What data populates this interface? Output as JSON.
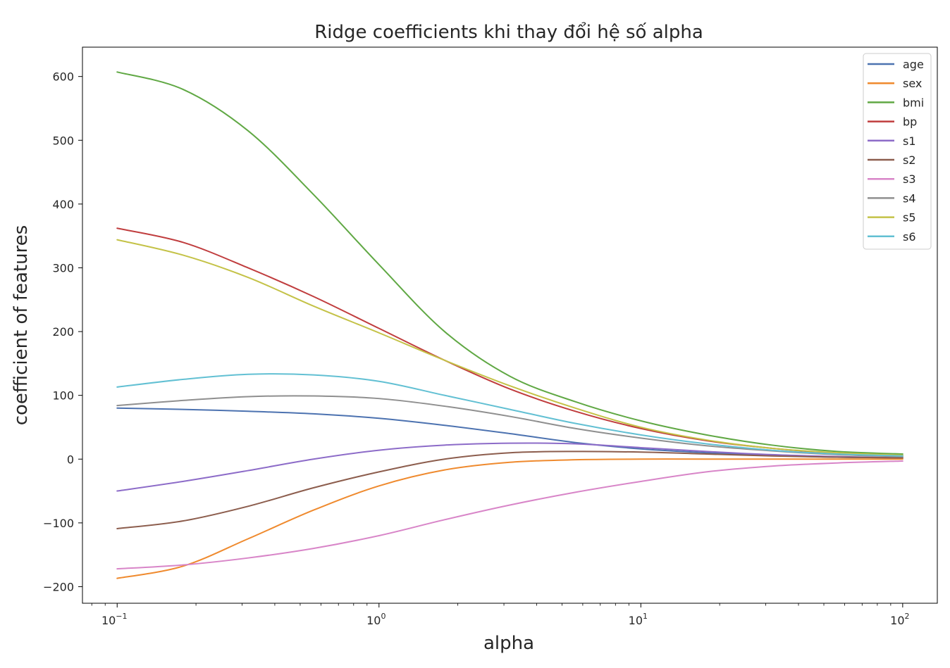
{
  "chart_data": {
    "type": "line",
    "title": "Ridge coefficients khi thay đổi hệ số alpha",
    "xlabel": "alpha",
    "ylabel": "coefficient of features",
    "xscale": "log",
    "xlim": [
      0.0737,
      135.6
    ],
    "ylim": [
      -226,
      646
    ],
    "xticks": [
      {
        "value": 0.1,
        "base": "10",
        "exp": "−1"
      },
      {
        "value": 1,
        "base": "10",
        "exp": "0"
      },
      {
        "value": 10,
        "base": "10",
        "exp": "1"
      },
      {
        "value": 100,
        "base": "10",
        "exp": "2"
      }
    ],
    "yticks": [
      {
        "value": -200,
        "label": "−200"
      },
      {
        "value": -100,
        "label": "−100"
      },
      {
        "value": 0,
        "label": "0"
      },
      {
        "value": 100,
        "label": "100"
      },
      {
        "value": 200,
        "label": "200"
      },
      {
        "value": 300,
        "label": "300"
      },
      {
        "value": 400,
        "label": "400"
      },
      {
        "value": 500,
        "label": "500"
      },
      {
        "value": 600,
        "label": "600"
      }
    ],
    "grid": false,
    "legend_position": "top-right",
    "x": [
      0.1,
      0.178,
      0.316,
      0.562,
      1,
      1.78,
      3.16,
      5.62,
      10,
      17.8,
      31.6,
      56.2,
      100
    ],
    "series": [
      {
        "name": "age",
        "color": "#4c72b0",
        "values": [
          80,
          78,
          75,
          71,
          64,
          53,
          40,
          26,
          16,
          10,
          6,
          3,
          2
        ]
      },
      {
        "name": "sex",
        "color": "#ef8a2e",
        "values": [
          -187,
          -168,
          -125,
          -80,
          -42,
          -17,
          -5,
          -1,
          0,
          0,
          0,
          0,
          0
        ]
      },
      {
        "name": "bmi",
        "color": "#60a844",
        "values": [
          607,
          580,
          515,
          415,
          305,
          200,
          130,
          90,
          60,
          38,
          22,
          12,
          8
        ]
      },
      {
        "name": "bp",
        "color": "#c03d3e",
        "values": [
          362,
          340,
          300,
          255,
          205,
          155,
          110,
          75,
          48,
          29,
          17,
          9,
          5
        ]
      },
      {
        "name": "s1",
        "color": "#8c6bc8",
        "values": [
          -50,
          -35,
          -18,
          0,
          14,
          22,
          25,
          24,
          18,
          12,
          7,
          4,
          2
        ]
      },
      {
        "name": "s2",
        "color": "#8c5d4d",
        "values": [
          -109,
          -97,
          -74,
          -45,
          -20,
          0,
          10,
          12,
          11,
          8,
          5,
          3,
          2
        ]
      },
      {
        "name": "s3",
        "color": "#d885c8",
        "values": [
          -172,
          -166,
          -155,
          -140,
          -120,
          -95,
          -72,
          -52,
          -35,
          -20,
          -11,
          -6,
          -3
        ]
      },
      {
        "name": "s4",
        "color": "#8f8f8f",
        "values": [
          84,
          92,
          98,
          99,
          95,
          83,
          67,
          48,
          33,
          21,
          13,
          7,
          4
        ]
      },
      {
        "name": "s5",
        "color": "#c4c247",
        "values": [
          344,
          320,
          285,
          240,
          198,
          155,
          115,
          80,
          50,
          30,
          17,
          10,
          6
        ]
      },
      {
        "name": "s6",
        "color": "#62c0d3",
        "values": [
          113,
          125,
          133,
          132,
          122,
          100,
          78,
          56,
          38,
          24,
          14,
          8,
          5
        ]
      }
    ]
  }
}
